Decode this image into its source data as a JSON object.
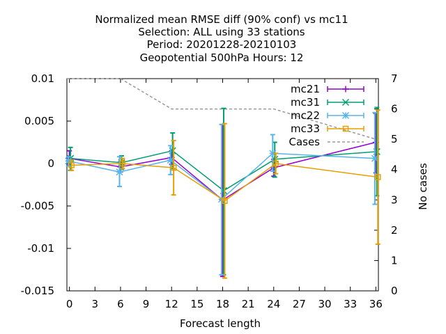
{
  "chart_data": {
    "type": "line",
    "title_lines": [
      "Normalized mean RMSE diff (90% conf) vs mc11",
      "Selection: ALL using    33 stations",
      "Period: 20201228-20210103",
      "Geopotential 500hPa   Hours:  12"
    ],
    "xlabel": "Forecast length",
    "ylabel_right": "No cases",
    "x_ticks": [
      0,
      3,
      6,
      9,
      12,
      15,
      18,
      21,
      24,
      27,
      30,
      33,
      36
    ],
    "y_ticks": [
      0.01,
      0.005,
      0,
      -0.005,
      -0.01,
      -0.015
    ],
    "y_tick_labels": [
      "0.01",
      "0.005",
      "0",
      "-0.005",
      "-0.01",
      "-0.015"
    ],
    "y2_ticks": [
      0,
      1,
      2,
      3,
      4,
      5,
      6,
      7
    ],
    "xlim": [
      -0.3,
      36.3
    ],
    "ylim": [
      -0.015,
      0.01
    ],
    "y2lim": [
      0,
      7
    ],
    "series": [
      {
        "name": "mc21",
        "color": "#9400d3",
        "marker": "plus",
        "dx": 0,
        "x": [
          0,
          6,
          12,
          18,
          24,
          36
        ],
        "y": [
          0.0006,
          -0.0004,
          0.0007,
          -0.0043,
          -0.0005,
          0.0025
        ],
        "err_lo": [
          -0.0002,
          -0.001,
          -0.0001,
          -0.0133,
          -0.0015,
          -0.0011
        ],
        "err_hi": [
          0.0015,
          0.0002,
          0.0015,
          0.0046,
          0.0005,
          0.0059
        ]
      },
      {
        "name": "mc31",
        "color": "#009e73",
        "marker": "cross",
        "dx": 0.12,
        "x": [
          0,
          6,
          12,
          18,
          24,
          36
        ],
        "y": [
          0.0006,
          0.0001,
          0.0015,
          -0.0032,
          0.0005,
          0.0014
        ],
        "err_lo": [
          -0.0008,
          -0.0007,
          -0.0006,
          -0.0131,
          -0.0016,
          -0.0038
        ],
        "err_hi": [
          0.0019,
          0.0009,
          0.0036,
          0.0065,
          0.0025,
          0.0066
        ]
      },
      {
        "name": "mc22",
        "color": "#56b4e9",
        "marker": "star",
        "dx": -0.12,
        "x": [
          0,
          6,
          12,
          18,
          24,
          36
        ],
        "y": [
          0.0003,
          -0.001,
          0.0004,
          -0.0042,
          0.0012,
          0.0006
        ],
        "err_lo": [
          -0.0003,
          -0.0027,
          -0.0013,
          -0.0131,
          -0.0009,
          -0.0048
        ],
        "err_hi": [
          0.0008,
          0.0008,
          0.0021,
          0.0046,
          0.0034,
          0.006
        ]
      },
      {
        "name": "mc33",
        "color": "#e69f00",
        "marker": "square",
        "dx": 0.24,
        "x": [
          0,
          6,
          12,
          18,
          24,
          36
        ],
        "y": [
          -0.0002,
          0.0,
          -0.0005,
          -0.0044,
          0.0,
          -0.0016
        ],
        "err_lo": [
          -0.0008,
          -0.0006,
          -0.0037,
          -0.0135,
          -0.0012,
          -0.0095
        ],
        "err_hi": [
          0.0004,
          0.0006,
          0.0027,
          0.0047,
          0.0012,
          0.0063
        ]
      }
    ],
    "cases": {
      "name": "Cases",
      "color": "#999999",
      "axis": "y2",
      "x": [
        -0.3,
        6,
        12,
        24,
        36,
        36.3
      ],
      "y": [
        7,
        7,
        6,
        6,
        5,
        5
      ]
    }
  }
}
